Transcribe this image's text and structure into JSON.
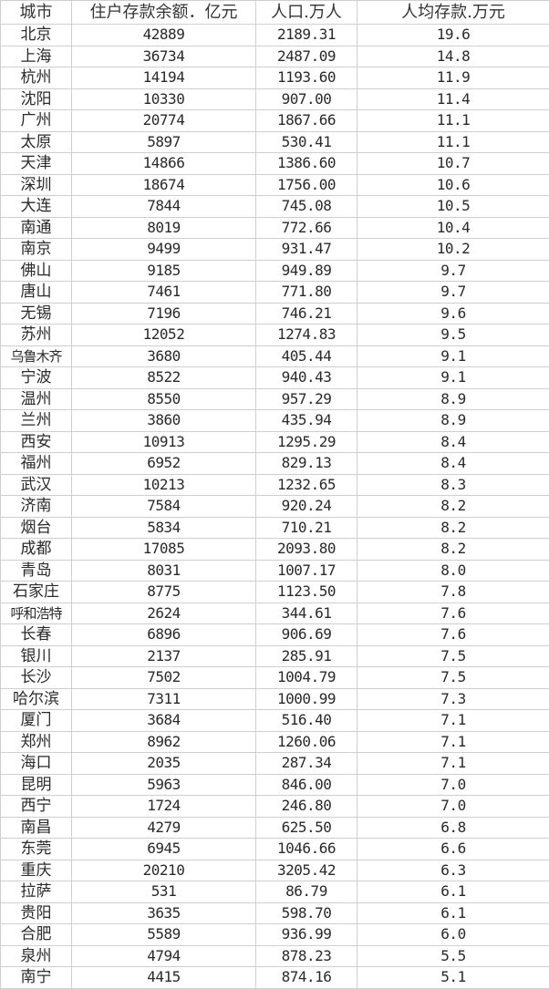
{
  "table": {
    "headers": [
      "城市",
      "住户存款余额．亿元",
      "人口.万人",
      "人均存款.万元"
    ],
    "rows": [
      [
        "北京",
        "42889",
        "2189.31",
        "19.6"
      ],
      [
        "上海",
        "36734",
        "2487.09",
        "14.8"
      ],
      [
        "杭州",
        "14194",
        "1193.60",
        "11.9"
      ],
      [
        "沈阳",
        "10330",
        "907.00",
        "11.4"
      ],
      [
        "广州",
        "20774",
        "1867.66",
        "11.1"
      ],
      [
        "太原",
        "5897",
        "530.41",
        "11.1"
      ],
      [
        "天津",
        "14866",
        "1386.60",
        "10.7"
      ],
      [
        "深圳",
        "18674",
        "1756.00",
        "10.6"
      ],
      [
        "大连",
        "7844",
        "745.08",
        "10.5"
      ],
      [
        "南通",
        "8019",
        "772.66",
        "10.4"
      ],
      [
        "南京",
        "9499",
        "931.47",
        "10.2"
      ],
      [
        "佛山",
        "9185",
        "949.89",
        "9.7"
      ],
      [
        "唐山",
        "7461",
        "771.80",
        "9.7"
      ],
      [
        "无锡",
        "7196",
        "746.21",
        "9.6"
      ],
      [
        "苏州",
        "12052",
        "1274.83",
        "9.5"
      ],
      [
        "乌鲁木齐",
        "3680",
        "405.44",
        "9.1"
      ],
      [
        "宁波",
        "8522",
        "940.43",
        "9.1"
      ],
      [
        "温州",
        "8550",
        "957.29",
        "8.9"
      ],
      [
        "兰州",
        "3860",
        "435.94",
        "8.9"
      ],
      [
        "西安",
        "10913",
        "1295.29",
        "8.4"
      ],
      [
        "福州",
        "6952",
        "829.13",
        "8.4"
      ],
      [
        "武汉",
        "10213",
        "1232.65",
        "8.3"
      ],
      [
        "济南",
        "7584",
        "920.24",
        "8.2"
      ],
      [
        "烟台",
        "5834",
        "710.21",
        "8.2"
      ],
      [
        "成都",
        "17085",
        "2093.80",
        "8.2"
      ],
      [
        "青岛",
        "8031",
        "1007.17",
        "8.0"
      ],
      [
        "石家庄",
        "8775",
        "1123.50",
        "7.8"
      ],
      [
        "呼和浩特",
        "2624",
        "344.61",
        "7.6"
      ],
      [
        "长春",
        "6896",
        "906.69",
        "7.6"
      ],
      [
        "银川",
        "2137",
        "285.91",
        "7.5"
      ],
      [
        "长沙",
        "7502",
        "1004.79",
        "7.5"
      ],
      [
        "哈尔滨",
        "7311",
        "1000.99",
        "7.3"
      ],
      [
        "厦门",
        "3684",
        "516.40",
        "7.1"
      ],
      [
        "郑州",
        "8962",
        "1260.06",
        "7.1"
      ],
      [
        "海口",
        "2035",
        "287.34",
        "7.1"
      ],
      [
        "昆明",
        "5963",
        "846.00",
        "7.0"
      ],
      [
        "西宁",
        "1724",
        "246.80",
        "7.0"
      ],
      [
        "南昌",
        "4279",
        "625.50",
        "6.8"
      ],
      [
        "东莞",
        "6945",
        "1046.66",
        "6.6"
      ],
      [
        "重庆",
        "20210",
        "3205.42",
        "6.3"
      ],
      [
        "拉萨",
        "531",
        "86.79",
        "6.1"
      ],
      [
        "贵阳",
        "3635",
        "598.70",
        "6.1"
      ],
      [
        "合肥",
        "5589",
        "936.99",
        "6.0"
      ],
      [
        "泉州",
        "4794",
        "878.23",
        "5.5"
      ],
      [
        "南宁",
        "4415",
        "874.16",
        "5.1"
      ]
    ]
  }
}
